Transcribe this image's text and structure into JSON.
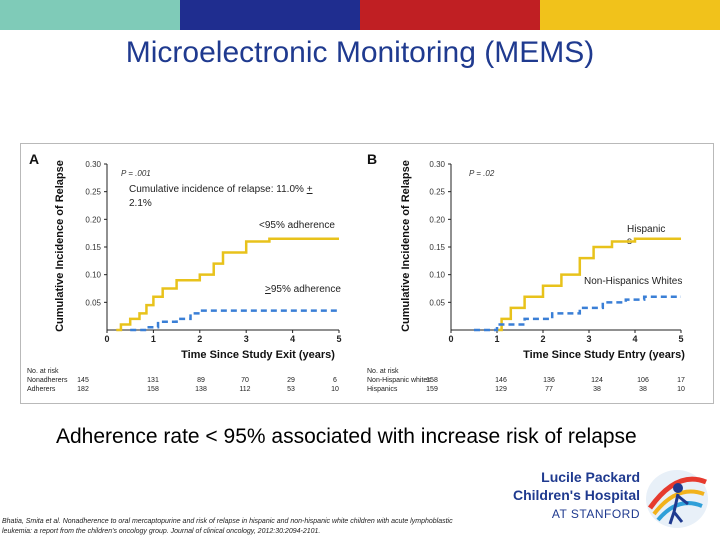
{
  "slide": {
    "title": "Microelectronic Monitoring (MEMS)",
    "caption": "Adherence rate < 95% associated with increase risk of relapse",
    "citation": "Bhatia, Smita et al. Nonadherence to oral mercaptopurine and risk of relapse in hispanic and non-hispanic white children with acute lymphoblastic leukemia: a report from the children's oncology group. Journal of clinical oncology, 2012:30:2094-2101.",
    "top_bar_colors": [
      "#7fcbb8",
      "#1f2d8f",
      "#c01f23",
      "#f1c21b"
    ]
  },
  "logo": {
    "line1": "Lucile Packard",
    "line2": "Children's Hospital",
    "line3": "AT STANFORD",
    "text_color": "#1f3a8f"
  },
  "chart_data": [
    {
      "type": "line",
      "panel_label": "A",
      "p_value": "P = .001",
      "ylabel": "Cumulative Incidence of Relapse",
      "xlabel": "Time Since Study Exit (years)",
      "xlim": [
        0,
        5
      ],
      "ylim": [
        0,
        0.3
      ],
      "x_ticks": [
        "0",
        "1",
        "2",
        "3",
        "4",
        "5"
      ],
      "y_ticks": [
        "0.05",
        "0.10",
        "0.15",
        "0.20",
        "0.25",
        "0.30"
      ],
      "annotations": {
        "incidence": "Cumulative incidence of relapse: 11.0% + 2.1%",
        "low_adherence": "<95% adherence",
        "high_adherence": ">95% adherence"
      },
      "series": [
        {
          "name": "Nonadherers",
          "color": "#e8c21b",
          "style": "solid",
          "points": [
            [
              0.2,
              0
            ],
            [
              0.3,
              0.01
            ],
            [
              0.5,
              0.02
            ],
            [
              0.7,
              0.03
            ],
            [
              0.85,
              0.045
            ],
            [
              1.0,
              0.06
            ],
            [
              1.2,
              0.075
            ],
            [
              1.5,
              0.09
            ],
            [
              2.0,
              0.1
            ],
            [
              2.3,
              0.12
            ],
            [
              2.5,
              0.14
            ],
            [
              3.0,
              0.16
            ],
            [
              3.5,
              0.165
            ],
            [
              5.0,
              0.165
            ]
          ]
        },
        {
          "name": "Adherers",
          "color": "#3a7fd6",
          "style": "dashed",
          "points": [
            [
              0.5,
              0
            ],
            [
              0.9,
              0.005
            ],
            [
              1.1,
              0.015
            ],
            [
              1.5,
              0.02
            ],
            [
              1.8,
              0.03
            ],
            [
              2.0,
              0.035
            ],
            [
              5.0,
              0.035
            ]
          ]
        }
      ],
      "at_risk": {
        "header": "No. at risk",
        "rows": [
          {
            "label": "Nonadherers",
            "values": [
              "145",
              "131",
              "89",
              "70",
              "29",
              "6"
            ]
          },
          {
            "label": "Adherers",
            "values": [
              "182",
              "158",
              "138",
              "112",
              "53",
              "10"
            ]
          }
        ]
      }
    },
    {
      "type": "line",
      "panel_label": "B",
      "p_value": "P = .02",
      "ylabel": "Cumulative Incidence of Relapse",
      "xlabel": "Time Since Study Entry (years)",
      "xlim": [
        0,
        5
      ],
      "ylim": [
        0,
        0.3
      ],
      "x_ticks": [
        "0",
        "1",
        "2",
        "3",
        "4",
        "5"
      ],
      "y_ticks": [
        "0.05",
        "0.10",
        "0.15",
        "0.20",
        "0.25",
        "0.30"
      ],
      "annotations": {
        "hispanic": "Hispanic s",
        "non_hispanic": "Non-Hispanics Whites"
      },
      "series": [
        {
          "name": "Hispanics",
          "color": "#e8c21b",
          "style": "solid",
          "points": [
            [
              1.0,
              0
            ],
            [
              1.1,
              0.02
            ],
            [
              1.3,
              0.04
            ],
            [
              1.6,
              0.06
            ],
            [
              2.0,
              0.08
            ],
            [
              2.4,
              0.1
            ],
            [
              2.8,
              0.13
            ],
            [
              3.1,
              0.15
            ],
            [
              3.5,
              0.16
            ],
            [
              4.0,
              0.165
            ],
            [
              5.0,
              0.165
            ]
          ]
        },
        {
          "name": "Non-Hispanic whites",
          "color": "#3a7fd6",
          "style": "dashed",
          "points": [
            [
              0.5,
              0
            ],
            [
              1.0,
              0.01
            ],
            [
              1.6,
              0.02
            ],
            [
              2.2,
              0.03
            ],
            [
              2.8,
              0.04
            ],
            [
              3.3,
              0.05
            ],
            [
              3.8,
              0.055
            ],
            [
              4.2,
              0.06
            ],
            [
              5.0,
              0.06
            ]
          ]
        }
      ],
      "at_risk": {
        "header": "No. at risk",
        "rows": [
          {
            "label": "Non-Hispanic whites",
            "values": [
              "158",
              "146",
              "136",
              "124",
              "106",
              "17"
            ]
          },
          {
            "label": "Hispanics",
            "values": [
              "159",
              "129",
              "77",
              "38",
              "38",
              "10"
            ]
          }
        ]
      }
    }
  ]
}
